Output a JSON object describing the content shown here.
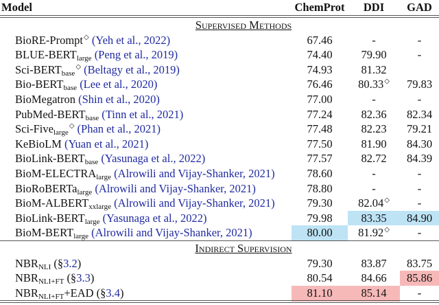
{
  "columns": [
    "Model",
    "ChemProt",
    "DDI",
    "GAD"
  ],
  "colors": {
    "best_supervised": "#bde3f5",
    "best_overall": "#f6b9b8",
    "citation": "#1f2aa0"
  },
  "sections": [
    {
      "title": "Supervised Methods",
      "rows": [
        {
          "name": "BioRE-Prompt",
          "sub": "",
          "mark": "◇",
          "cite": "(Yeh et al., 2022)",
          "values": [
            {
              "v": "67.46"
            },
            {
              "v": "-"
            },
            {
              "v": "-"
            }
          ]
        },
        {
          "name": "BLUE-BERT",
          "sub": "large",
          "mark": "",
          "cite": "(Peng et al., 2019)",
          "values": [
            {
              "v": "74.40"
            },
            {
              "v": "79.90"
            },
            {
              "v": "-"
            }
          ]
        },
        {
          "name": "Sci-BERT",
          "sub": "base",
          "mark": "◇",
          "cite": "(Beltagy et al., 2019)",
          "values": [
            {
              "v": "74.93"
            },
            {
              "v": "81.32"
            },
            {
              "v": ""
            }
          ]
        },
        {
          "name": "Bio-BERT",
          "sub": "base",
          "mark": "",
          "cite": "(Lee et al., 2020)",
          "values": [
            {
              "v": "76.46"
            },
            {
              "v": "80.33",
              "mark": "◇"
            },
            {
              "v": "79.83"
            }
          ]
        },
        {
          "name": "BioMegatron",
          "sub": "",
          "mark": "",
          "cite": "(Shin et al., 2020)",
          "values": [
            {
              "v": "77.00"
            },
            {
              "v": "-"
            },
            {
              "v": "-"
            }
          ]
        },
        {
          "name": "PubMed-BERT",
          "sub": "base",
          "mark": "",
          "cite": "(Tinn et al., 2021)",
          "values": [
            {
              "v": "77.24"
            },
            {
              "v": "82.36"
            },
            {
              "v": "82.34"
            }
          ]
        },
        {
          "name": "Sci-Five",
          "sub": "large",
          "mark": "◇",
          "cite": "(Phan et al., 2021)",
          "values": [
            {
              "v": "77.48"
            },
            {
              "v": "82.23"
            },
            {
              "v": "79.21"
            }
          ]
        },
        {
          "name": "KeBioLM",
          "sub": "",
          "mark": "",
          "cite": "(Yuan et al., 2021)",
          "values": [
            {
              "v": "77.50"
            },
            {
              "v": "81.90"
            },
            {
              "v": "84.30"
            }
          ]
        },
        {
          "name": "BioLink-BERT",
          "sub": "base",
          "mark": "",
          "cite": "(Yasunaga et al., 2022)",
          "values": [
            {
              "v": "77.57"
            },
            {
              "v": "82.72"
            },
            {
              "v": "84.39"
            }
          ]
        },
        {
          "name": "BioM-ELECTRA",
          "sub": "large",
          "mark": "",
          "cite": "(Alrowili and Vijay-Shanker, 2021)",
          "values": [
            {
              "v": "78.60"
            },
            {
              "v": "-"
            },
            {
              "v": "-"
            }
          ]
        },
        {
          "name": "BioRoBERTa",
          "sub": "large",
          "mark": "",
          "cite": "(Alrowili and Vijay-Shanker, 2021)",
          "values": [
            {
              "v": "78.80"
            },
            {
              "v": "-"
            },
            {
              "v": "-"
            }
          ]
        },
        {
          "name": "BioM-ALBERT",
          "sub": "xxlarge",
          "mark": "",
          "cite": "(Alrowili and Vijay-Shanker, 2021)",
          "values": [
            {
              "v": "79.30"
            },
            {
              "v": "82.04",
              "mark": "◇"
            },
            {
              "v": "-"
            }
          ]
        },
        {
          "name": "BioLink-BERT",
          "sub": "large",
          "mark": "",
          "cite": "(Yasunaga et al., 2022)",
          "values": [
            {
              "v": "79.98"
            },
            {
              "v": "83.35",
              "hl": "blue"
            },
            {
              "v": "84.90",
              "hl": "blue"
            }
          ]
        },
        {
          "name": "BioM-BERT",
          "sub": "large",
          "mark": "",
          "cite": "(Alrowili and Vijay-Shanker, 2021)",
          "values": [
            {
              "v": "80.00",
              "hl": "blue"
            },
            {
              "v": "81.92",
              "mark": "◇"
            },
            {
              "v": "-"
            }
          ]
        }
      ]
    },
    {
      "title": "Indirect Supervision",
      "rows": [
        {
          "name": "NBR",
          "sub": "NLI",
          "mark": "",
          "suffix": "",
          "cite_pre": "(§",
          "cite": "3.2",
          "cite_post": ")",
          "values": [
            {
              "v": "79.30"
            },
            {
              "v": "83.87"
            },
            {
              "v": "83.75"
            }
          ]
        },
        {
          "name": "NBR",
          "sub": "NLI+FT",
          "mark": "",
          "suffix": "",
          "cite_pre": "(§",
          "cite": "3.3",
          "cite_post": ")",
          "values": [
            {
              "v": "80.54"
            },
            {
              "v": "84.66"
            },
            {
              "v": "85.86",
              "hl": "red"
            }
          ]
        },
        {
          "name": "NBR",
          "sub": "NLI+FT",
          "mark": "",
          "suffix": "+EAD",
          "cite_pre": "(§",
          "cite": "3.4",
          "cite_post": ")",
          "values": [
            {
              "v": "81.10",
              "hl": "red"
            },
            {
              "v": "85.14",
              "hl": "red"
            },
            {
              "v": "-"
            }
          ]
        }
      ]
    }
  ]
}
